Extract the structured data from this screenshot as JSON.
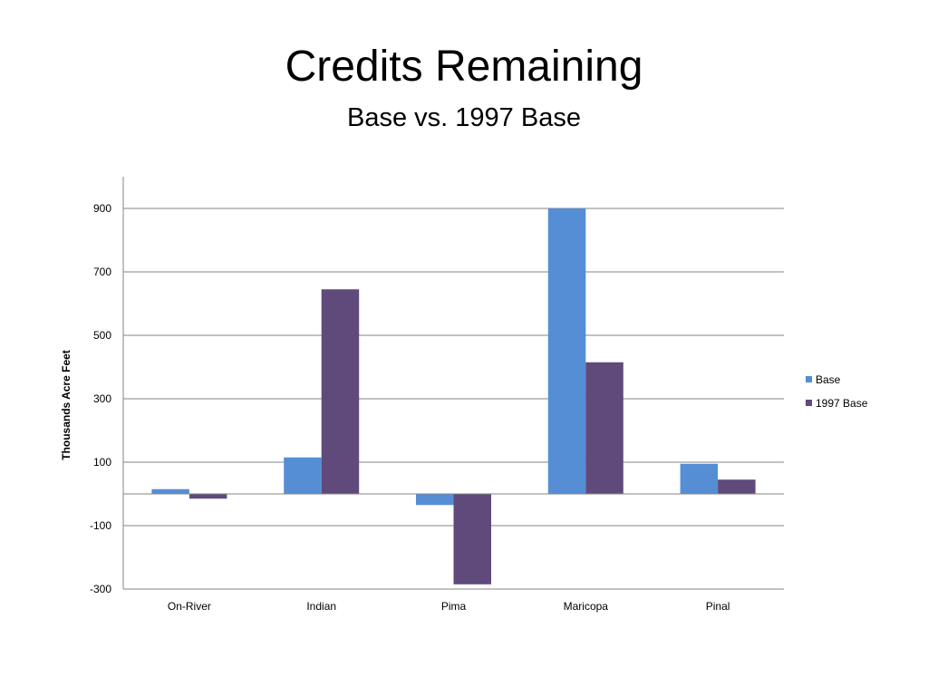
{
  "title": "Credits Remaining",
  "subtitle": "Base vs. 1997 Base",
  "chart_data": {
    "type": "bar",
    "categories": [
      "On-River",
      "Indian",
      "Pima",
      "Maricopa",
      "Pinal"
    ],
    "series": [
      {
        "name": "Base",
        "color": "#558ed5",
        "values": [
          15,
          115,
          -35,
          900,
          95
        ]
      },
      {
        "name": "1997 Base",
        "color": "#604a7b",
        "values": [
          -15,
          645,
          -285,
          415,
          45
        ]
      }
    ],
    "ylabel": "Thousands Acre Feet",
    "xlabel": "",
    "yticks": [
      900,
      700,
      500,
      300,
      100,
      -100,
      -300
    ],
    "ylim": [
      -300,
      1000
    ],
    "grid": true,
    "legend": "right"
  }
}
